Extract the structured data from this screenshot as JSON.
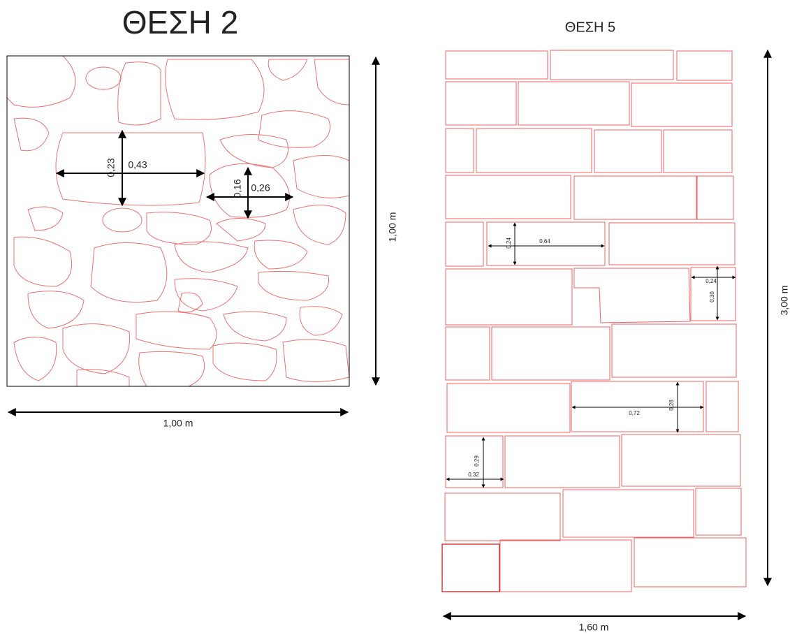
{
  "left": {
    "title": "ΘΕΣΗ 2",
    "width_label": "1,00 m",
    "height_label": "1,00 m",
    "dimensions": [
      "0,23",
      "0,43",
      "0,16",
      "0,26"
    ]
  },
  "right": {
    "title": "ΘΕΣΗ 5",
    "width_label": "1,60 m",
    "height_label": "3,00 m",
    "dimensions": [
      "0,24",
      "0,64",
      "0,24",
      "0,30",
      "0,28",
      "0,72",
      "0,29",
      "0,32"
    ]
  }
}
